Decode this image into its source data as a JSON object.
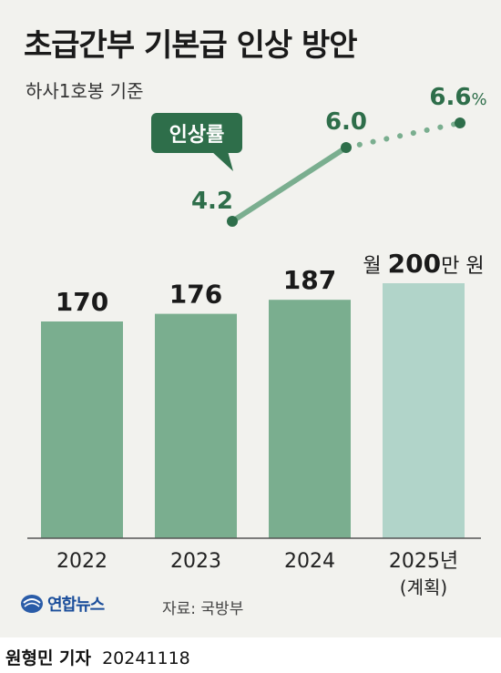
{
  "header": {
    "title": "초급간부 기본급 인상 방안",
    "subtitle": "하사1호봉 기준"
  },
  "chart_data": {
    "type": "bar",
    "categories": [
      "2022",
      "2023",
      "2024",
      "2025년"
    ],
    "category_sub": [
      "",
      "",
      "",
      "(계획)"
    ],
    "values": [
      170,
      176,
      187,
      200
    ],
    "value_labels": [
      "170",
      "176",
      "187",
      "200"
    ],
    "final_label": {
      "prefix": "월",
      "value": "200",
      "suffix": "만 원"
    },
    "ylim": [
      0,
      210
    ],
    "bar_colors": [
      "#7aae8f",
      "#7aae8f",
      "#7aae8f",
      "#b1d4c9"
    ],
    "line": {
      "name": "인상률",
      "x": [
        "2023",
        "2024",
        "2025년"
      ],
      "values": [
        4.2,
        6.0,
        6.6
      ],
      "labels": [
        "4.2",
        "6.0",
        "6.6"
      ],
      "last_suffix": "%",
      "solid_color": "#7aae8f",
      "dot_color": "#2e6e4a",
      "dotted_segment": [
        "2024",
        "2025년"
      ]
    }
  },
  "footer": {
    "logo_text": "연합뉴스",
    "source": "자료: 국방부",
    "reporter": "원형민 기자",
    "date": "20241118"
  },
  "colors": {
    "panel_bg": "#f2f2ee",
    "bar": "#7aae8f",
    "bar_plan": "#b1d4c9",
    "accent_dark": "#2e6e4a",
    "baseline": "#555555"
  }
}
